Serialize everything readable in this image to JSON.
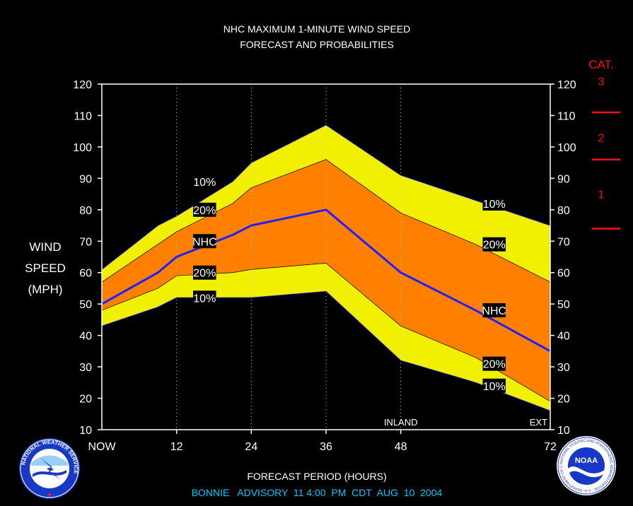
{
  "chart_data": {
    "type": "area",
    "title": "NHC MAXIMUM 1-MINUTE WIND SPEED",
    "subtitle": "FORECAST AND PROBABILITIES",
    "ylabel_lines": [
      "WIND",
      "SPEED",
      "(MPH)"
    ],
    "xlabel": "FORECAST PERIOD (HOURS)",
    "footer": "BONNIE   ADVISORY  11 4:00  PM  CDT  AUG  10  2004",
    "ylim": [
      10,
      120
    ],
    "xlim": [
      0,
      72
    ],
    "y_ticks": [
      "10",
      "20",
      "30",
      "40",
      "50",
      "60",
      "70",
      "80",
      "90",
      "100",
      "110",
      "120"
    ],
    "x_ticks": [
      {
        "x": 0,
        "label": "NOW"
      },
      {
        "x": 12,
        "label": "12"
      },
      {
        "x": 24,
        "label": "24"
      },
      {
        "x": 36,
        "label": "36"
      },
      {
        "x": 48,
        "label": "48"
      },
      {
        "x": 72,
        "label": "72"
      }
    ],
    "markers": [
      {
        "x": 48,
        "label": "INLAND"
      },
      {
        "x": 72,
        "label": "EXT"
      }
    ],
    "grid_x": [
      12,
      24,
      36,
      48
    ],
    "x": [
      0,
      9,
      12,
      21,
      24,
      36,
      48,
      60,
      72
    ],
    "series": [
      {
        "name": "10%",
        "role": "upper10",
        "values": [
          61,
          75,
          78,
          89,
          95,
          107,
          91,
          83,
          75
        ]
      },
      {
        "name": "20%",
        "role": "upper20",
        "values": [
          57,
          69,
          73,
          82,
          87,
          96,
          79,
          69,
          57
        ]
      },
      {
        "name": "NHC",
        "role": "nhc",
        "values": [
          50,
          60,
          65,
          72,
          75,
          80,
          60,
          48,
          35
        ]
      },
      {
        "name": "20%",
        "role": "lower20",
        "values": [
          48,
          55,
          59,
          60,
          61,
          63,
          43,
          33,
          19
        ]
      },
      {
        "name": "10%",
        "role": "lower10",
        "values": [
          43,
          49,
          52,
          52,
          52,
          54,
          32,
          25,
          16
        ]
      }
    ],
    "band_labels": [
      {
        "text": "10%",
        "x": 16.5,
        "y": 89
      },
      {
        "text": "20%",
        "x": 16.5,
        "y": 80
      },
      {
        "text": "NHC",
        "x": 16.5,
        "y": 70
      },
      {
        "text": "20%",
        "x": 16.5,
        "y": 60
      },
      {
        "text": "10%",
        "x": 16.5,
        "y": 52
      },
      {
        "text": "10%",
        "x": 63,
        "y": 82
      },
      {
        "text": "20%",
        "x": 63,
        "y": 69
      },
      {
        "text": "NHC",
        "x": 63,
        "y": 48
      },
      {
        "text": "20%",
        "x": 63,
        "y": 31
      },
      {
        "text": "10%",
        "x": 63,
        "y": 24
      }
    ],
    "category_scale": {
      "title": "CAT.",
      "thresholds": [
        96,
        111
      ],
      "labels": [
        {
          "text": "1",
          "y": 85
        },
        {
          "text": "2",
          "y": 103
        },
        {
          "text": "3",
          "y": 121
        }
      ],
      "extra_tick_y": 74
    },
    "colors": {
      "outer_band": "#f0f000",
      "inner_band": "#ff8000",
      "nhc_line": "#1f1fff",
      "category": "#ff1010",
      "footer": "#00c8ff",
      "background": "#000000",
      "text": "#ffffff"
    }
  },
  "logos": {
    "nws": {
      "icon": "nws-logo",
      "text": "NATIONAL WEATHER SERVICE"
    },
    "noaa": {
      "icon": "noaa-logo",
      "text": "NOAA",
      "ring_text": "NATIONAL OCEANIC AND ATMOSPHERIC ADMINISTRATION · U.S. DEPARTMENT OF COMMERCE"
    }
  }
}
